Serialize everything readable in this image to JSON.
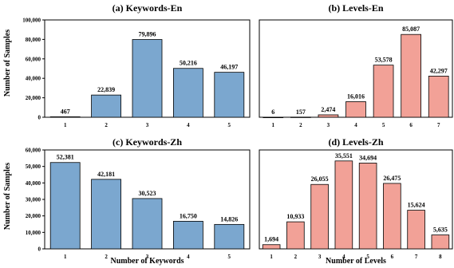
{
  "chart_data": [
    {
      "type": "bar",
      "title": "(a) Keywords-En",
      "categories": [
        "1",
        "2",
        "3",
        "4",
        "5"
      ],
      "values": [
        467,
        22839,
        79896,
        50216,
        46197
      ],
      "value_labels": [
        "467",
        "22,839",
        "79,896",
        "50,216",
        "46,197"
      ],
      "ylim": [
        0,
        100000
      ],
      "yticks": [
        0,
        20000,
        40000,
        60000,
        80000,
        100000
      ],
      "ytick_labels": [
        "0",
        "20,000",
        "40,000",
        "60,000",
        "80,000",
        "100,000"
      ],
      "xlabel": "",
      "ylabel": "Number of Samples",
      "color": "#7ba7cf"
    },
    {
      "type": "bar",
      "title": "(b) Levels-En",
      "categories": [
        "1",
        "2",
        "3",
        "4",
        "5",
        "6",
        "7"
      ],
      "values": [
        6,
        157,
        2474,
        16016,
        53578,
        85087,
        42297
      ],
      "value_labels": [
        "6",
        "157",
        "2,474",
        "16,016",
        "53,578",
        "85,087",
        "42,297"
      ],
      "ylim": [
        0,
        100000
      ],
      "xlabel": "",
      "ylabel": "",
      "color": "#f2a197"
    },
    {
      "type": "bar",
      "title": "(c) Keywords-Zh",
      "categories": [
        "1",
        "2",
        "3",
        "4",
        "5"
      ],
      "values": [
        52381,
        42181,
        30523,
        16750,
        14826
      ],
      "value_labels": [
        "52,381",
        "42,181",
        "30,523",
        "16,750",
        "14,826"
      ],
      "ylim": [
        0,
        60000
      ],
      "yticks": [
        0,
        10000,
        20000,
        30000,
        40000,
        50000,
        60000
      ],
      "ytick_labels": [
        "0",
        "10,000",
        "20,000",
        "30,000",
        "40,000",
        "50,000",
        "60,000"
      ],
      "xlabel": "Number of Keywords",
      "ylabel": "Number of Samples",
      "color": "#7ba7cf"
    },
    {
      "type": "bar",
      "title": "(d) Levels-Zh",
      "categories": [
        "1",
        "2",
        "3",
        "4",
        "5",
        "6",
        "7",
        "8"
      ],
      "values": [
        1694,
        10933,
        26055,
        35551,
        34694,
        26475,
        15624,
        5635
      ],
      "value_labels": [
        "1,694",
        "10,933",
        "26,055",
        "35,551",
        "34,694",
        "26,475",
        "15,624",
        "5,635"
      ],
      "ylim": [
        0,
        40000
      ],
      "xlabel": "Number of Levels",
      "ylabel": "",
      "color": "#f2a197"
    }
  ]
}
